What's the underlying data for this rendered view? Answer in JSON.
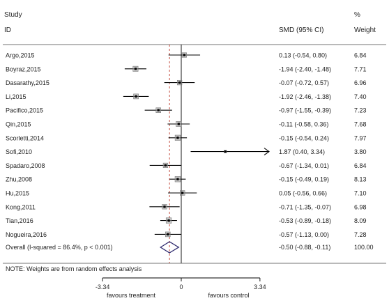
{
  "chart_data": {
    "type": "forest",
    "header": {
      "study_line1": "Study",
      "study_line2": "ID",
      "effect": "SMD (95% CI)",
      "weight_line1": "%",
      "weight_line2": "Weight"
    },
    "studies": [
      {
        "id": "Argo,2015",
        "smd": 0.13,
        "lo": -0.54,
        "hi": 0.8,
        "label": "0.13 (-0.54, 0.80)",
        "weight": "6.84"
      },
      {
        "id": "Boyraz,2015",
        "smd": -1.94,
        "lo": -2.4,
        "hi": -1.48,
        "label": "-1.94 (-2.40, -1.48)",
        "weight": "7.71"
      },
      {
        "id": "Dasarathy,2015",
        "smd": -0.07,
        "lo": -0.72,
        "hi": 0.57,
        "label": "-0.07 (-0.72, 0.57)",
        "weight": "6.96"
      },
      {
        "id": "Li,2015",
        "smd": -1.92,
        "lo": -2.46,
        "hi": -1.38,
        "label": "-1.92 (-2.46, -1.38)",
        "weight": "7.40"
      },
      {
        "id": "Pacifico,2015",
        "smd": -0.97,
        "lo": -1.55,
        "hi": -0.39,
        "label": "-0.97 (-1.55, -0.39)",
        "weight": "7.23"
      },
      {
        "id": "Qin,2015",
        "smd": -0.11,
        "lo": -0.58,
        "hi": 0.36,
        "label": "-0.11 (-0.58, 0.36)",
        "weight": "7.68"
      },
      {
        "id": "Scorletti,2014",
        "smd": -0.15,
        "lo": -0.54,
        "hi": 0.24,
        "label": "-0.15 (-0.54, 0.24)",
        "weight": "7.97"
      },
      {
        "id": "Sofi,2010",
        "smd": 1.87,
        "lo": 0.4,
        "hi": 3.34,
        "label": "1.87 (0.40, 3.34)",
        "weight": "3.80",
        "arrow": true
      },
      {
        "id": "Spadaro,2008",
        "smd": -0.67,
        "lo": -1.34,
        "hi": 0.01,
        "label": "-0.67 (-1.34, 0.01)",
        "weight": "6.84"
      },
      {
        "id": "Zhu,2008",
        "smd": -0.15,
        "lo": -0.49,
        "hi": 0.19,
        "label": "-0.15 (-0.49, 0.19)",
        "weight": "8.13"
      },
      {
        "id": "Hu,2015",
        "smd": 0.05,
        "lo": -0.56,
        "hi": 0.66,
        "label": "0.05 (-0.56, 0.66)",
        "weight": "7.10"
      },
      {
        "id": "Kong,2011",
        "smd": -0.71,
        "lo": -1.35,
        "hi": -0.07,
        "label": "-0.71 (-1.35, -0.07)",
        "weight": "6.98"
      },
      {
        "id": "Tian,2016",
        "smd": -0.53,
        "lo": -0.89,
        "hi": -0.18,
        "label": "-0.53 (-0.89, -0.18)",
        "weight": "8.09"
      },
      {
        "id": "Nogueira,2016",
        "smd": -0.57,
        "lo": -1.13,
        "hi": 0.0,
        "label": "-0.57 (-1.13, 0.00)",
        "weight": "7.28"
      }
    ],
    "overall": {
      "id": "Overall  (I-squared = 86.4%, p < 0.001)",
      "smd": -0.5,
      "lo": -0.88,
      "hi": -0.11,
      "label": "-0.50 (-0.88, -0.11)",
      "weight": "100.00"
    },
    "note": "NOTE: Weights are from random effects analysis",
    "xaxis": {
      "range": [
        -3.34,
        3.34
      ],
      "ticks": [
        -3.34,
        0,
        3.34
      ],
      "tick_labels": [
        "-3.34",
        "0",
        "3.34"
      ]
    },
    "xlabel_left": "favours treatment",
    "xlabel_right": "favours control",
    "colors": {
      "background": "#ffffff",
      "lines": "#000000",
      "overall_dashed_line": "#c0392b",
      "diamond": "#2e2a6e",
      "weight_box": "#999999"
    }
  }
}
